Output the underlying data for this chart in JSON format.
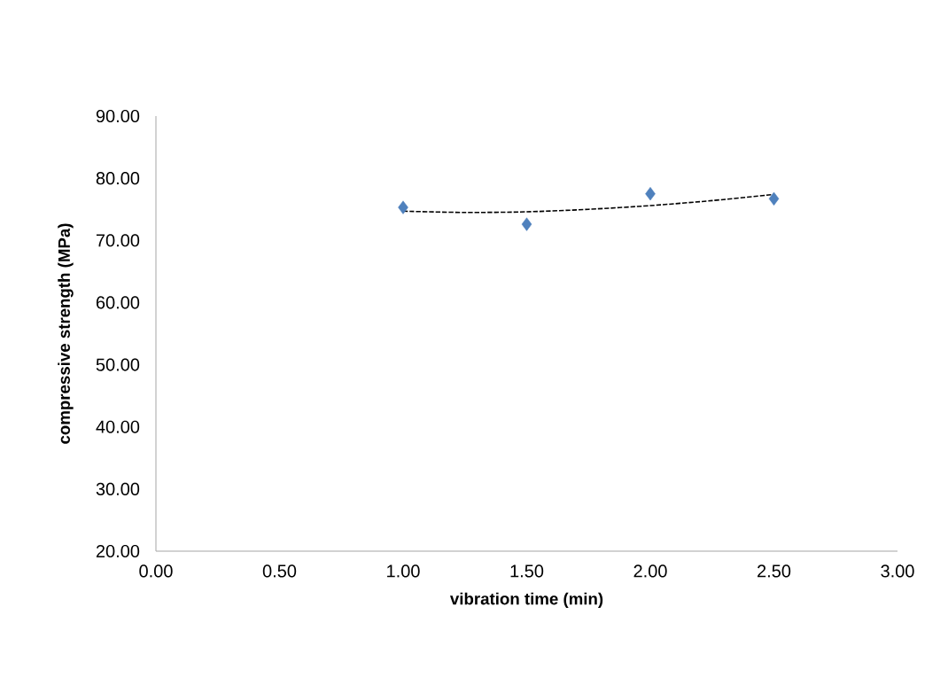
{
  "chart_data": {
    "type": "scatter",
    "xlabel": "vibration time (min)",
    "ylabel": "compressive strength (MPa)",
    "xlim": [
      0,
      3
    ],
    "ylim": [
      20,
      90
    ],
    "xticks": [
      {
        "value": 0,
        "label": "0.00"
      },
      {
        "value": 0.5,
        "label": "0.50"
      },
      {
        "value": 1,
        "label": "1.00"
      },
      {
        "value": 1.5,
        "label": "1.50"
      },
      {
        "value": 2,
        "label": "2.00"
      },
      {
        "value": 2.5,
        "label": "2.50"
      },
      {
        "value": 3,
        "label": "3.00"
      }
    ],
    "yticks": [
      {
        "value": 20,
        "label": "20.00"
      },
      {
        "value": 30,
        "label": "30.00"
      },
      {
        "value": 40,
        "label": "40.00"
      },
      {
        "value": 50,
        "label": "50.00"
      },
      {
        "value": 60,
        "label": "60.00"
      },
      {
        "value": 70,
        "label": "70.00"
      },
      {
        "value": 80,
        "label": "80.00"
      },
      {
        "value": 90,
        "label": "90.00"
      }
    ],
    "grid": false,
    "series": [
      {
        "color": "#4f81bd",
        "marker": "diamond",
        "x": [
          1,
          1.5,
          2,
          2.5
        ],
        "values": [
          75.3,
          72.6,
          77.5,
          76.7
        ]
      },
      {
        "type": "line",
        "color": "#000000",
        "line_style": "dashed",
        "marker": "none",
        "x": [
          1,
          1.25,
          1.5,
          1.75,
          2,
          2.25,
          2.5
        ],
        "values": [
          74.7,
          74.5,
          74.6,
          75.0,
          75.6,
          76.4,
          77.4
        ]
      }
    ]
  }
}
